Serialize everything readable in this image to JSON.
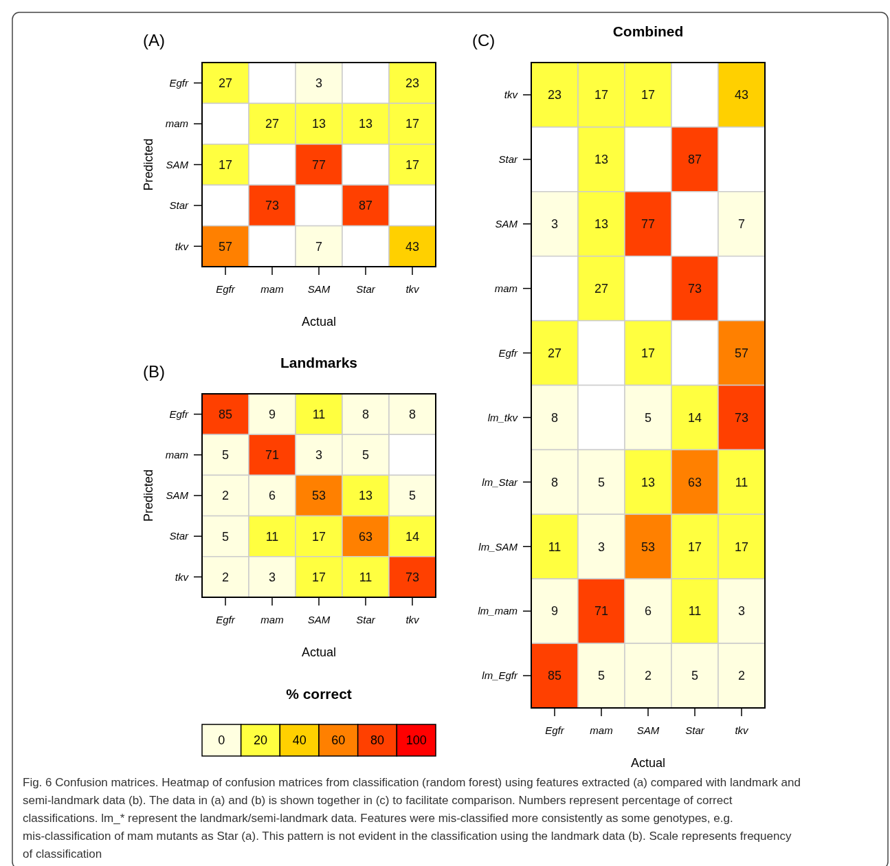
{
  "chart_data": [
    {
      "type": "heatmap",
      "xlabel": "Actual",
      "ylabel": "Predicted",
      "annotations": [
        "(A)"
      ],
      "data_labels": true,
      "categories": [
        "Egfr",
        "mam",
        "SAM",
        "Star",
        "tkv"
      ],
      "y_categories": [
        "Egfr",
        "mam",
        "SAM",
        "Star",
        "tkv"
      ],
      "cells": [
        [
          27,
          null,
          3,
          null,
          23
        ],
        [
          null,
          27,
          13,
          13,
          17
        ],
        [
          17,
          null,
          77,
          null,
          17
        ],
        [
          null,
          73,
          null,
          87,
          null
        ],
        [
          57,
          null,
          7,
          null,
          43
        ]
      ]
    },
    {
      "type": "heatmap",
      "title": "Landmarks",
      "xlabel": "Actual",
      "ylabel": "Predicted",
      "annotations": [
        "(B)"
      ],
      "data_labels": true,
      "clabel": "% correct",
      "clim": [
        0,
        100
      ],
      "cticks": [
        0,
        20,
        40,
        60,
        80,
        100
      ],
      "categories": [
        "Egfr",
        "mam",
        "SAM",
        "Star",
        "tkv"
      ],
      "y_categories": [
        "Egfr",
        "mam",
        "SAM",
        "Star",
        "tkv"
      ],
      "cells": [
        [
          85,
          9,
          11,
          8,
          8
        ],
        [
          5,
          71,
          3,
          5,
          null
        ],
        [
          2,
          6,
          53,
          13,
          5
        ],
        [
          5,
          11,
          17,
          63,
          14
        ],
        [
          2,
          3,
          17,
          11,
          73
        ]
      ]
    },
    {
      "type": "heatmap",
      "title": "Combined",
      "xlabel": "Actual",
      "data_labels": true,
      "annotations": [
        "(C)",
        "Fig. 6 Confusion matrices. Heatmap of confusion matrices from classification (random forest) using features extracted (a) compared with landmark and semi-landmark data (b). The data in (a) and (b) is shown together in (c) to facilitate comparison. Numbers represent percentage of correct classifications. lm_* represent the landmark/semi-landmark data. Features were mis-classified more consistently as some genotypes, e.g. mis-classification of mam mutants as Star (a). This pattern is not evident in the classification using the landmark data (b). Scale represents frequency of classification"
      ],
      "categories": [
        "Egfr",
        "mam",
        "SAM",
        "Star",
        "tkv"
      ],
      "y_categories": [
        "tkv",
        "Star",
        "SAM",
        "mam",
        "Egfr",
        "lm_tkv",
        "lm_Star",
        "lm_SAM",
        "lm_mam",
        "lm_Egfr"
      ],
      "cells": [
        [
          23,
          17,
          17,
          null,
          43
        ],
        [
          null,
          13,
          null,
          87,
          null
        ],
        [
          3,
          13,
          77,
          null,
          7
        ],
        [
          null,
          27,
          null,
          73,
          null
        ],
        [
          27,
          null,
          17,
          null,
          57
        ],
        [
          8,
          null,
          5,
          14,
          73
        ],
        [
          8,
          5,
          13,
          63,
          11
        ],
        [
          11,
          3,
          53,
          17,
          17
        ],
        [
          9,
          71,
          6,
          11,
          3
        ],
        [
          85,
          5,
          2,
          5,
          2
        ]
      ]
    }
  ]
}
